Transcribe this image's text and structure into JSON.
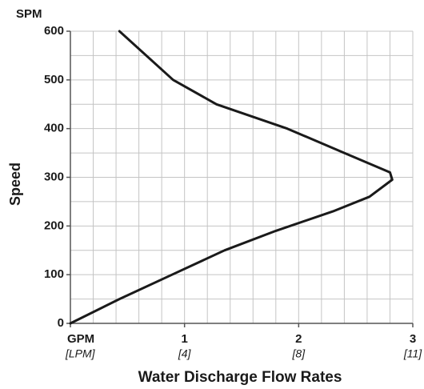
{
  "chart_data": {
    "type": "line",
    "y_unit": "SPM",
    "ylabel": "Speed",
    "xlabel": "Water Discharge Flow Rates",
    "x": [
      0,
      0.43,
      0.89,
      1.35,
      1.8,
      2.3,
      2.62,
      2.82,
      2.8,
      2.4,
      1.9,
      1.28,
      0.9,
      0.43
    ],
    "values": [
      0,
      50,
      100,
      150,
      190,
      230,
      260,
      295,
      310,
      350,
      400,
      450,
      500,
      600
    ],
    "color": "#1a1a1a",
    "xlim": [
      0,
      3
    ],
    "ylim": [
      0,
      600
    ],
    "xticks": [
      {
        "value": 0,
        "label": "GPM"
      },
      1,
      2,
      3
    ],
    "xtick_sublabels": [
      "[LPM]",
      "[4]",
      "[8]",
      "[11]"
    ],
    "yticks": [
      0,
      100,
      200,
      300,
      400,
      500,
      600
    ],
    "xgrid": [
      0.2,
      0.4,
      0.6,
      0.8,
      1,
      1.2,
      1.4,
      1.6,
      1.8,
      2,
      2.2,
      2.4,
      2.6,
      2.8,
      3
    ],
    "ygrid": [
      50,
      100,
      150,
      200,
      250,
      300,
      350,
      400,
      450,
      500,
      550,
      600
    ],
    "grid": true
  }
}
